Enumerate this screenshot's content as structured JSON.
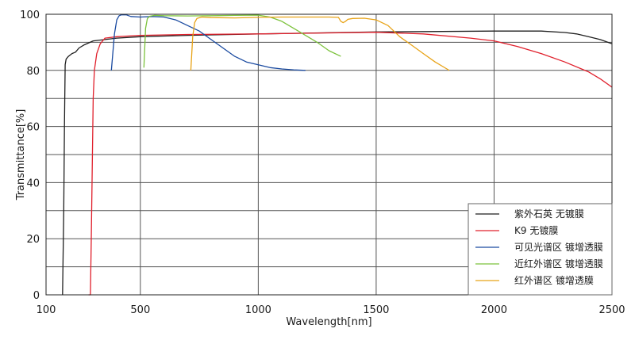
{
  "chart_data": {
    "type": "line",
    "xlabel": "Wavelength[nm]",
    "ylabel": "Transmittance[%]",
    "xlim": [
      100,
      2500
    ],
    "ylim": [
      0,
      100
    ],
    "xticks": [
      100,
      500,
      1000,
      1500,
      2000,
      2500
    ],
    "yticks": [
      0,
      20,
      40,
      60,
      80,
      100
    ],
    "grid": true,
    "legend_position": "bottom-right",
    "series": [
      {
        "name": "紫外石英 无镀膜",
        "color": "#1f1f1f",
        "x": [
          170,
          175,
          178,
          181,
          185,
          195,
          210,
          225,
          240,
          260,
          300,
          400,
          500,
          700,
          1000,
          1500,
          2000,
          2200,
          2300,
          2350,
          2400,
          2450,
          2500
        ],
        "y": [
          0,
          30,
          60,
          82,
          84,
          85,
          86,
          86.5,
          88,
          89,
          90.5,
          91.5,
          92,
          92.5,
          93,
          93.7,
          94,
          94,
          93.5,
          93,
          92,
          91,
          89.5
        ]
      },
      {
        "name": "K9 无镀膜",
        "color": "#e0202c",
        "x": [
          280,
          288,
          292,
          296,
          300,
          305,
          315,
          330,
          350,
          400,
          500,
          700,
          1000,
          1500,
          1700,
          1900,
          2000,
          2100,
          2200,
          2300,
          2400,
          2450,
          2500
        ],
        "y": [
          0,
          0,
          20,
          45,
          70,
          80,
          86,
          89.5,
          91.5,
          92,
          92.5,
          92.8,
          93,
          93.6,
          93,
          91.5,
          90.5,
          88.5,
          86,
          83,
          79.5,
          77,
          74
        ]
      },
      {
        "name": "可见光谱区 镀增透膜",
        "color": "#1a4aa0",
        "x": [
          377,
          382,
          390,
          400,
          410,
          420,
          440,
          460,
          500,
          550,
          600,
          650,
          700,
          750,
          800,
          900,
          950,
          1000,
          1050,
          1100,
          1150,
          1200
        ],
        "y": [
          80,
          85,
          93,
          98,
          99.5,
          99.8,
          99.8,
          99.2,
          99,
          99.2,
          99,
          98,
          96,
          94,
          91,
          85,
          83,
          82,
          81,
          80.5,
          80.2,
          80
        ]
      },
      {
        "name": "近红外谱区 镀增透膜",
        "color": "#7cc23c",
        "x": [
          515,
          518,
          522,
          530,
          540,
          560,
          600,
          700,
          800,
          900,
          1000,
          1050,
          1100,
          1150,
          1200,
          1250,
          1300,
          1350
        ],
        "y": [
          81,
          87,
          95,
          98.5,
          99.3,
          99.6,
          99.5,
          99.4,
          99.5,
          99.6,
          99.7,
          99,
          97.5,
          95,
          92.5,
          90,
          87,
          85
        ]
      },
      {
        "name": "红外谱区 镀增透膜",
        "color": "#e8a317",
        "x": [
          714,
          718,
          722,
          730,
          740,
          760,
          800,
          900,
          1000,
          1100,
          1200,
          1300,
          1340,
          1350,
          1360,
          1370,
          1380,
          1400,
          1450,
          1500,
          1550,
          1600,
          1650,
          1700,
          1750,
          1800,
          1810
        ],
        "y": [
          80,
          86,
          92,
          97,
          98.5,
          99,
          98.8,
          98.7,
          98.9,
          99,
          99,
          99,
          98.9,
          97.5,
          97,
          97.5,
          98.2,
          98.5,
          98.6,
          98,
          96,
          92,
          89,
          86,
          83,
          80.5,
          80
        ]
      }
    ]
  }
}
